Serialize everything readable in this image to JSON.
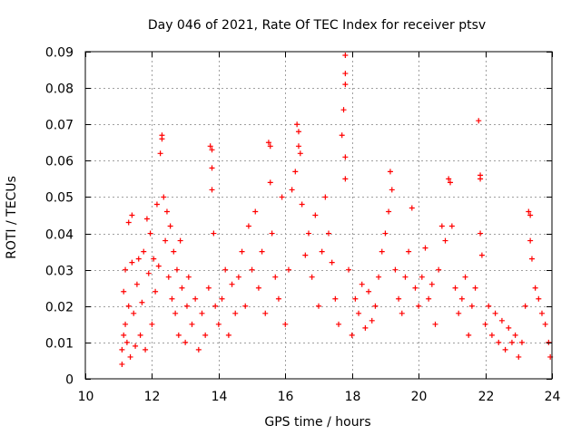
{
  "chart_data": {
    "type": "scatter",
    "title": "Day 046 of 2021, Rate Of TEC Index for receiver ptsv",
    "xlabel": "GPS time / hours",
    "ylabel": "ROTI / TECUs",
    "xlim": [
      10,
      24
    ],
    "ylim": [
      0,
      0.09
    ],
    "x_ticks": [
      10,
      12,
      14,
      16,
      18,
      20,
      22,
      24
    ],
    "x_tick_labels": [
      "10",
      "12",
      "14",
      "16",
      "18",
      "20",
      "22",
      "24"
    ],
    "y_ticks": [
      0,
      0.01,
      0.02,
      0.03,
      0.04,
      0.05,
      0.06,
      0.07,
      0.08,
      0.09
    ],
    "y_tick_labels": [
      "0",
      "0.01",
      "0.02",
      "0.03",
      "0.04",
      "0.05",
      "0.06",
      "0.07",
      "0.08",
      "0.09"
    ],
    "grid": true,
    "marker": "+",
    "series": [
      {
        "name": "ROTI",
        "color": "#ff0000",
        "points": [
          [
            11.1,
            0.004
          ],
          [
            11.1,
            0.008
          ],
          [
            11.15,
            0.012
          ],
          [
            11.15,
            0.024
          ],
          [
            11.2,
            0.03
          ],
          [
            11.2,
            0.015
          ],
          [
            11.25,
            0.01
          ],
          [
            11.3,
            0.043
          ],
          [
            11.3,
            0.02
          ],
          [
            11.35,
            0.006
          ],
          [
            11.4,
            0.045
          ],
          [
            11.4,
            0.032
          ],
          [
            11.45,
            0.018
          ],
          [
            11.5,
            0.009
          ],
          [
            11.55,
            0.026
          ],
          [
            11.6,
            0.033
          ],
          [
            11.65,
            0.012
          ],
          [
            11.7,
            0.021
          ],
          [
            11.75,
            0.035
          ],
          [
            11.8,
            0.008
          ],
          [
            11.85,
            0.044
          ],
          [
            11.9,
            0.029
          ],
          [
            11.95,
            0.04
          ],
          [
            12.0,
            0.015
          ],
          [
            12.05,
            0.033
          ],
          [
            12.1,
            0.024
          ],
          [
            12.15,
            0.048
          ],
          [
            12.2,
            0.031
          ],
          [
            12.25,
            0.062
          ],
          [
            12.3,
            0.067
          ],
          [
            12.3,
            0.066
          ],
          [
            12.35,
            0.05
          ],
          [
            12.4,
            0.038
          ],
          [
            12.45,
            0.046
          ],
          [
            12.5,
            0.028
          ],
          [
            12.55,
            0.042
          ],
          [
            12.6,
            0.022
          ],
          [
            12.65,
            0.035
          ],
          [
            12.7,
            0.018
          ],
          [
            12.75,
            0.03
          ],
          [
            12.8,
            0.012
          ],
          [
            12.85,
            0.038
          ],
          [
            12.9,
            0.025
          ],
          [
            13.0,
            0.01
          ],
          [
            13.05,
            0.02
          ],
          [
            13.1,
            0.028
          ],
          [
            13.2,
            0.015
          ],
          [
            13.3,
            0.022
          ],
          [
            13.4,
            0.008
          ],
          [
            13.5,
            0.018
          ],
          [
            13.6,
            0.012
          ],
          [
            13.7,
            0.025
          ],
          [
            13.75,
            0.064
          ],
          [
            13.8,
            0.063
          ],
          [
            13.8,
            0.058
          ],
          [
            13.8,
            0.052
          ],
          [
            13.85,
            0.04
          ],
          [
            13.9,
            0.02
          ],
          [
            14.0,
            0.015
          ],
          [
            14.1,
            0.022
          ],
          [
            14.2,
            0.03
          ],
          [
            14.3,
            0.012
          ],
          [
            14.4,
            0.026
          ],
          [
            14.5,
            0.018
          ],
          [
            14.6,
            0.028
          ],
          [
            14.7,
            0.035
          ],
          [
            14.8,
            0.02
          ],
          [
            14.9,
            0.042
          ],
          [
            15.0,
            0.03
          ],
          [
            15.1,
            0.046
          ],
          [
            15.2,
            0.025
          ],
          [
            15.3,
            0.035
          ],
          [
            15.4,
            0.018
          ],
          [
            15.5,
            0.065
          ],
          [
            15.55,
            0.064
          ],
          [
            15.55,
            0.054
          ],
          [
            15.6,
            0.04
          ],
          [
            15.7,
            0.028
          ],
          [
            15.8,
            0.022
          ],
          [
            15.9,
            0.05
          ],
          [
            16.0,
            0.015
          ],
          [
            16.1,
            0.03
          ],
          [
            16.2,
            0.052
          ],
          [
            16.3,
            0.057
          ],
          [
            16.35,
            0.07
          ],
          [
            16.4,
            0.068
          ],
          [
            16.4,
            0.064
          ],
          [
            16.45,
            0.062
          ],
          [
            16.5,
            0.048
          ],
          [
            16.6,
            0.034
          ],
          [
            16.7,
            0.04
          ],
          [
            16.8,
            0.028
          ],
          [
            16.9,
            0.045
          ],
          [
            17.0,
            0.02
          ],
          [
            17.1,
            0.035
          ],
          [
            17.2,
            0.05
          ],
          [
            17.3,
            0.04
          ],
          [
            17.4,
            0.032
          ],
          [
            17.5,
            0.022
          ],
          [
            17.6,
            0.015
          ],
          [
            17.7,
            0.067
          ],
          [
            17.75,
            0.074
          ],
          [
            17.8,
            0.089
          ],
          [
            17.8,
            0.084
          ],
          [
            17.8,
            0.081
          ],
          [
            17.8,
            0.061
          ],
          [
            17.8,
            0.055
          ],
          [
            17.9,
            0.03
          ],
          [
            18.0,
            0.012
          ],
          [
            18.1,
            0.022
          ],
          [
            18.2,
            0.018
          ],
          [
            18.3,
            0.026
          ],
          [
            18.4,
            0.014
          ],
          [
            18.5,
            0.024
          ],
          [
            18.6,
            0.016
          ],
          [
            18.7,
            0.02
          ],
          [
            18.8,
            0.028
          ],
          [
            18.9,
            0.035
          ],
          [
            19.0,
            0.04
          ],
          [
            19.1,
            0.046
          ],
          [
            19.15,
            0.057
          ],
          [
            19.2,
            0.052
          ],
          [
            19.3,
            0.03
          ],
          [
            19.4,
            0.022
          ],
          [
            19.5,
            0.018
          ],
          [
            19.6,
            0.028
          ],
          [
            19.7,
            0.035
          ],
          [
            19.8,
            0.047
          ],
          [
            19.9,
            0.025
          ],
          [
            20.0,
            0.02
          ],
          [
            20.1,
            0.028
          ],
          [
            20.2,
            0.036
          ],
          [
            20.3,
            0.022
          ],
          [
            20.4,
            0.026
          ],
          [
            20.5,
            0.015
          ],
          [
            20.6,
            0.03
          ],
          [
            20.7,
            0.042
          ],
          [
            20.8,
            0.038
          ],
          [
            20.9,
            0.055
          ],
          [
            20.95,
            0.054
          ],
          [
            21.0,
            0.042
          ],
          [
            21.1,
            0.025
          ],
          [
            21.2,
            0.018
          ],
          [
            21.3,
            0.022
          ],
          [
            21.4,
            0.028
          ],
          [
            21.5,
            0.012
          ],
          [
            21.6,
            0.02
          ],
          [
            21.7,
            0.025
          ],
          [
            21.8,
            0.071
          ],
          [
            21.85,
            0.056
          ],
          [
            21.85,
            0.055
          ],
          [
            21.85,
            0.04
          ],
          [
            21.9,
            0.034
          ],
          [
            22.0,
            0.015
          ],
          [
            22.1,
            0.02
          ],
          [
            22.2,
            0.012
          ],
          [
            22.3,
            0.018
          ],
          [
            22.4,
            0.01
          ],
          [
            22.5,
            0.016
          ],
          [
            22.6,
            0.008
          ],
          [
            22.7,
            0.014
          ],
          [
            22.8,
            0.01
          ],
          [
            22.9,
            0.012
          ],
          [
            23.0,
            0.006
          ],
          [
            23.1,
            0.01
          ],
          [
            23.2,
            0.02
          ],
          [
            23.3,
            0.046
          ],
          [
            23.35,
            0.045
          ],
          [
            23.35,
            0.038
          ],
          [
            23.4,
            0.033
          ],
          [
            23.5,
            0.025
          ],
          [
            23.6,
            0.022
          ],
          [
            23.7,
            0.018
          ],
          [
            23.8,
            0.015
          ],
          [
            23.9,
            0.01
          ],
          [
            23.95,
            0.006
          ]
        ]
      }
    ]
  }
}
